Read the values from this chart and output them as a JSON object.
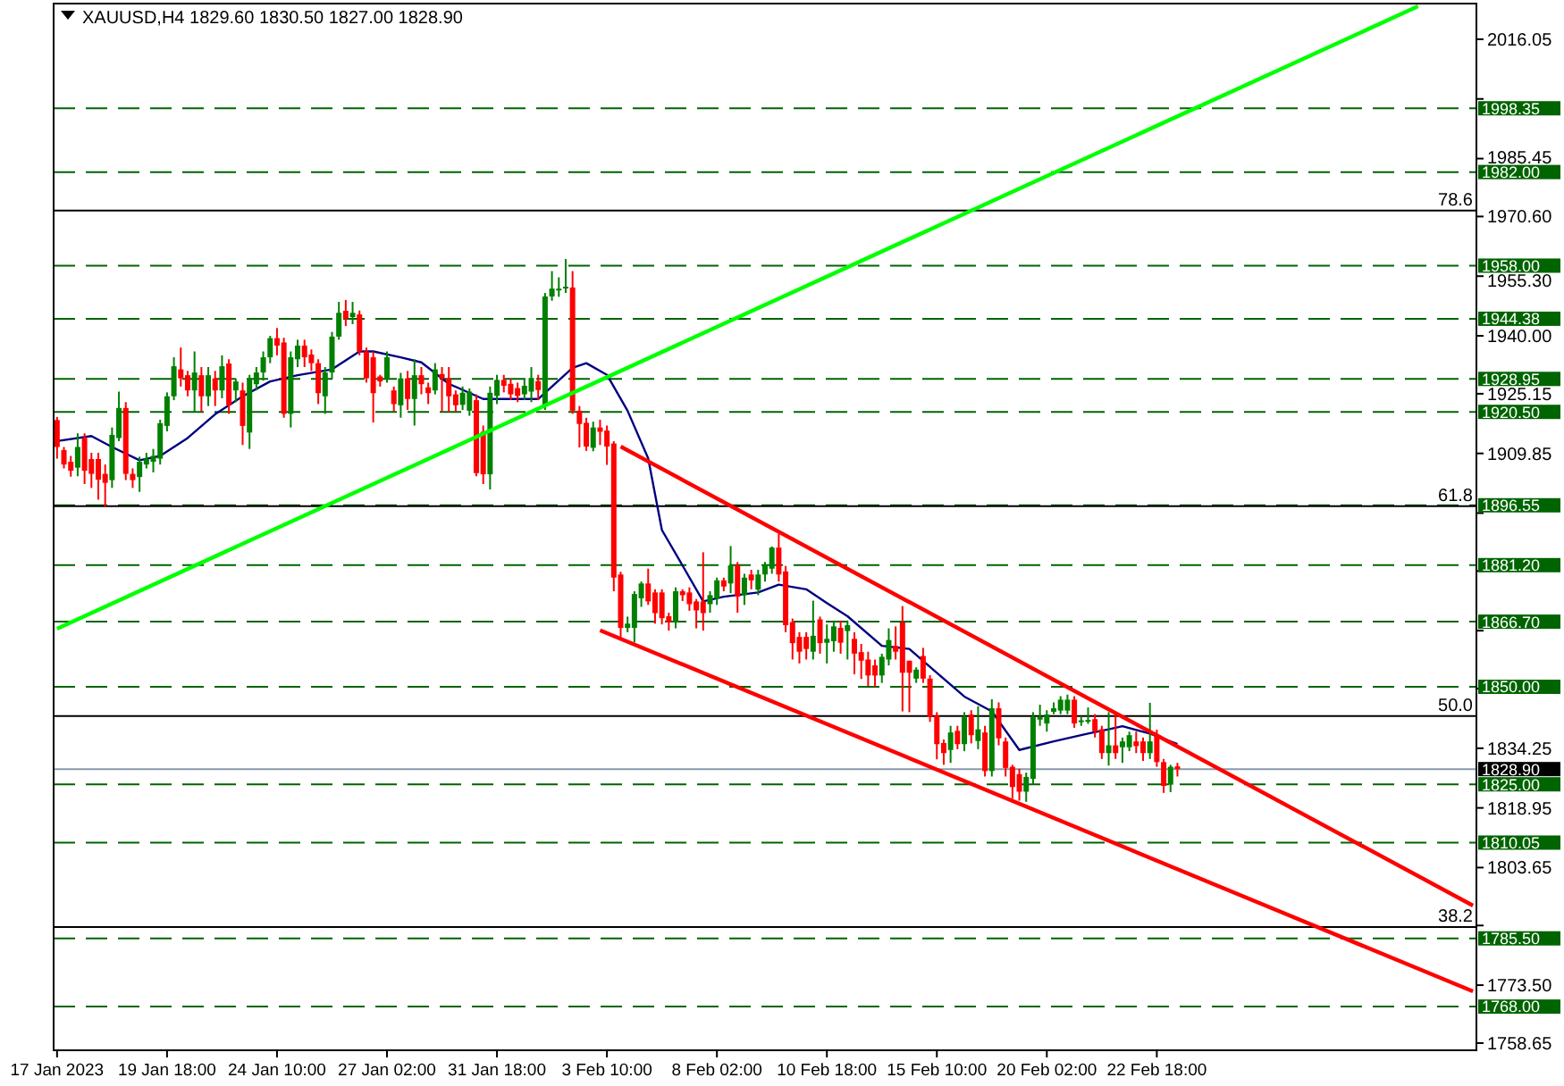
{
  "chart_data": {
    "type": "candlestick",
    "title": "XAUUSD,H4  1829.60 1830.50 1827.00 1828.90",
    "categories": [
      "17 Jan 2023",
      null,
      null,
      null,
      null,
      null,
      null,
      null,
      null,
      null,
      null,
      null,
      null,
      null,
      null,
      null,
      "19 Jan 18:00",
      null,
      null,
      null,
      null,
      null,
      null,
      null,
      null,
      null,
      null,
      null,
      null,
      null,
      null,
      null,
      "24 Jan 10:00",
      null,
      null,
      null,
      null,
      null,
      null,
      null,
      null,
      null,
      null,
      null,
      null,
      null,
      null,
      null,
      "27 Jan 02:00",
      null,
      null,
      null,
      null,
      null,
      null,
      null,
      null,
      null,
      null,
      null,
      null,
      null,
      null,
      null,
      "31 Jan 18:00",
      null,
      null,
      null,
      null,
      null,
      null,
      null,
      null,
      null,
      null,
      null,
      null,
      null,
      null,
      null,
      "3 Feb 10:00",
      null,
      null,
      null,
      null,
      null,
      null,
      null,
      null,
      null,
      null,
      null,
      null,
      null,
      null,
      null,
      "8 Feb 02:00",
      null,
      null,
      null,
      null,
      null,
      null,
      null,
      null,
      null,
      null,
      null,
      null,
      null,
      null,
      null,
      "10 Feb 18:00",
      null,
      null,
      null,
      null,
      null,
      null,
      null,
      null,
      null,
      null,
      null,
      null,
      null,
      null,
      null,
      "15 Feb 10:00",
      null,
      null,
      null,
      null,
      null,
      null,
      null,
      null,
      null,
      null,
      null,
      null,
      null,
      null,
      null,
      "20 Feb 02:00",
      null,
      null,
      null,
      null,
      null,
      null,
      null,
      null,
      null,
      null,
      null,
      null,
      null,
      null,
      null,
      "22 Feb 18:00",
      null,
      null,
      null,
      null,
      null,
      null,
      null,
      null,
      null,
      null,
      null,
      null,
      null,
      null,
      null,
      null,
      null,
      null,
      null,
      null,
      null,
      null,
      null,
      null,
      null,
      null,
      null,
      null,
      null,
      null,
      null,
      null,
      null,
      null,
      null,
      null,
      null,
      null,
      null,
      null,
      null,
      null,
      null,
      null,
      null,
      null
    ],
    "ohlc": [
      [
        1918.4,
        1919.2,
        1908.5,
        1911.5
      ],
      [
        1910.7,
        1911.5,
        1906,
        1907
      ],
      [
        1907.7,
        1909.2,
        1903.9,
        1905.4
      ],
      [
        1906.2,
        1915,
        1904,
        1911.5
      ],
      [
        1913.8,
        1915,
        1902,
        1905.4
      ],
      [
        1908.4,
        1910,
        1901,
        1904.6
      ],
      [
        1908.4,
        1910,
        1898,
        1903.1
      ],
      [
        1904.6,
        1907,
        1896.2,
        1902.3
      ],
      [
        1903,
        1916.5,
        1901,
        1914.6
      ],
      [
        1913.8,
        1925.7,
        1913,
        1921.5
      ],
      [
        1921.5,
        1923,
        1903,
        1904.6
      ],
      [
        1904.6,
        1906,
        1901,
        1903
      ],
      [
        1903.8,
        1909,
        1900,
        1907.7
      ],
      [
        1907,
        1910,
        1906,
        1908.5
      ],
      [
        1907.7,
        1911,
        1905,
        1909.2
      ],
      [
        1908.5,
        1918.5,
        1907,
        1917.6
      ],
      [
        1916.9,
        1925.5,
        1915.5,
        1924.5
      ],
      [
        1924.5,
        1934.5,
        1923.5,
        1932.2
      ],
      [
        1931.4,
        1937,
        1927,
        1929.1
      ],
      [
        1929.9,
        1931,
        1924.5,
        1926
      ],
      [
        1926,
        1936,
        1920.5,
        1930.6
      ],
      [
        1929.9,
        1932,
        1920.5,
        1924.5
      ],
      [
        1924.5,
        1932,
        1922,
        1929.9
      ],
      [
        1929.1,
        1931,
        1922,
        1926
      ],
      [
        1926,
        1935,
        1924,
        1932.2
      ],
      [
        1932.9,
        1934,
        1920,
        1922.2
      ],
      [
        1926,
        1929,
        1923,
        1928.3
      ],
      [
        1926,
        1928,
        1912,
        1916.9
      ],
      [
        1915.2,
        1930,
        1911,
        1929.1
      ],
      [
        1927.6,
        1932,
        1926,
        1930.6
      ],
      [
        1930.6,
        1936,
        1928.5,
        1934.5
      ],
      [
        1934.5,
        1940,
        1933,
        1939.4
      ],
      [
        1939.4,
        1942,
        1935,
        1937.5
      ],
      [
        1938.3,
        1939.5,
        1919,
        1920
      ],
      [
        1920,
        1936,
        1916.5,
        1934.5
      ],
      [
        1934,
        1939,
        1932,
        1937.5
      ],
      [
        1937.5,
        1939,
        1932,
        1934.5
      ],
      [
        1935.2,
        1936.5,
        1931,
        1933
      ],
      [
        1933,
        1934,
        1922.5,
        1925.3
      ],
      [
        1924.5,
        1932,
        1920,
        1930.6
      ],
      [
        1930.6,
        1941,
        1929,
        1939.8
      ],
      [
        1939.8,
        1948.7,
        1939,
        1945.9
      ],
      [
        1946.4,
        1949.2,
        1942.5,
        1944.4
      ],
      [
        1944.8,
        1948.7,
        1943,
        1945.9
      ],
      [
        1945.5,
        1946.5,
        1935,
        1936
      ],
      [
        1936,
        1937,
        1928,
        1929.1
      ],
      [
        1934.5,
        1936,
        1917.8,
        1925.3
      ],
      [
        1929.6,
        1930,
        1927,
        1928.3
      ],
      [
        1929.1,
        1936,
        1928,
        1934.5
      ],
      [
        1926,
        1927,
        1920.5,
        1922.5
      ],
      [
        1922.2,
        1930.5,
        1919,
        1929.1
      ],
      [
        1929.1,
        1931,
        1921,
        1923.8
      ],
      [
        1923.8,
        1934,
        1917,
        1929.9
      ],
      [
        1929.9,
        1932,
        1925,
        1927.6
      ],
      [
        1926.8,
        1928,
        1922.5,
        1925.3
      ],
      [
        1926,
        1933,
        1925,
        1931.4
      ],
      [
        1930.2,
        1932,
        1920.5,
        1929.1
      ],
      [
        1929.1,
        1932,
        1920.5,
        1924.5
      ],
      [
        1925,
        1926,
        1920.5,
        1922.2
      ],
      [
        1922.3,
        1927,
        1921,
        1925.4
      ],
      [
        1920.8,
        1926.5,
        1919.5,
        1925.7
      ],
      [
        1923.5,
        1925,
        1904,
        1904.8
      ],
      [
        1915.4,
        1917,
        1902,
        1904.5
      ],
      [
        1904.5,
        1927,
        1900.6,
        1925.4
      ],
      [
        1924.6,
        1930,
        1922.5,
        1928.7
      ],
      [
        1928.7,
        1930,
        1925.5,
        1927.2
      ],
      [
        1927.7,
        1929,
        1923.5,
        1925
      ],
      [
        1926.6,
        1928,
        1923,
        1924.6
      ],
      [
        1925,
        1929,
        1923.5,
        1927.2
      ],
      [
        1925.7,
        1932,
        1923,
        1929.2
      ],
      [
        1928.4,
        1930,
        1923.5,
        1926.1
      ],
      [
        1922.3,
        1951,
        1921,
        1950.1
      ],
      [
        1950.1,
        1956.6,
        1949,
        1952.1
      ],
      [
        1951.8,
        1955,
        1950,
        1952.1
      ],
      [
        1952.4,
        1959.7,
        1951,
        1952.6
      ],
      [
        1952.4,
        1956.6,
        1920,
        1920.8
      ],
      [
        1920.8,
        1922,
        1911.4,
        1917.4
      ],
      [
        1917.7,
        1919,
        1910.5,
        1911.6
      ],
      [
        1911.3,
        1918,
        1910.4,
        1916.5
      ],
      [
        1916.5,
        1918.5,
        1912,
        1915.4
      ],
      [
        1915.7,
        1917,
        1906.9,
        1911.6
      ],
      [
        1912.4,
        1913,
        1874.5,
        1878
      ],
      [
        1878.8,
        1879.5,
        1861.9,
        1865.1
      ],
      [
        1865.1,
        1868,
        1864,
        1866.2
      ],
      [
        1865.1,
        1874.5,
        1861.4,
        1873.8
      ],
      [
        1872.7,
        1877,
        1870.5,
        1876.5
      ],
      [
        1876.5,
        1880.3,
        1871,
        1871.9
      ],
      [
        1874.2,
        1875,
        1866.2,
        1868.9
      ],
      [
        1874.2,
        1875,
        1866,
        1867.6
      ],
      [
        1868.1,
        1869,
        1864.4,
        1866.6
      ],
      [
        1866.6,
        1875.5,
        1865,
        1874.5
      ],
      [
        1874.5,
        1875,
        1872,
        1873.5
      ],
      [
        1874.2,
        1875.5,
        1869.5,
        1871.2
      ],
      [
        1871.9,
        1872.5,
        1865,
        1869.6
      ],
      [
        1871.9,
        1884.5,
        1864.4,
        1868.9
      ],
      [
        1871.2,
        1874.5,
        1869,
        1873.5
      ],
      [
        1872.7,
        1878,
        1871,
        1877.3
      ],
      [
        1877.3,
        1878,
        1874.5,
        1875.7
      ],
      [
        1876.5,
        1886.1,
        1874,
        1881.1
      ],
      [
        1881.1,
        1882,
        1869,
        1873.1
      ],
      [
        1873.5,
        1879,
        1871,
        1878
      ],
      [
        1878.8,
        1880,
        1875,
        1877.3
      ],
      [
        1874.9,
        1880,
        1873.5,
        1878.8
      ],
      [
        1878.8,
        1882,
        1877,
        1881.4
      ],
      [
        1880.3,
        1886,
        1879,
        1885.7
      ],
      [
        1885.7,
        1889.2,
        1877,
        1878.8
      ],
      [
        1879.6,
        1881,
        1864,
        1865.8
      ],
      [
        1866.6,
        1867.5,
        1857,
        1861.2
      ],
      [
        1862.8,
        1864,
        1856,
        1859
      ],
      [
        1862.8,
        1864,
        1857,
        1859.7
      ],
      [
        1859,
        1872.1,
        1857,
        1863.1
      ],
      [
        1867.3,
        1868,
        1858.5,
        1861.2
      ],
      [
        1861.3,
        1866,
        1856,
        1862.3
      ],
      [
        1861.7,
        1867,
        1859,
        1865.5
      ],
      [
        1865.1,
        1867,
        1858.5,
        1861.3
      ],
      [
        1864.3,
        1867,
        1857,
        1865.8
      ],
      [
        1862.3,
        1864,
        1853.2,
        1858.5
      ],
      [
        1858.9,
        1861,
        1852,
        1856.7
      ],
      [
        1857,
        1859,
        1850.2,
        1852.9
      ],
      [
        1855.5,
        1857,
        1850,
        1852.9
      ],
      [
        1852.9,
        1858.5,
        1851,
        1857.7
      ],
      [
        1857,
        1865,
        1855.5,
        1862
      ],
      [
        1860.5,
        1865.5,
        1857,
        1859
      ],
      [
        1866.5,
        1870.7,
        1843.7,
        1853.6
      ],
      [
        1856.7,
        1856.7,
        1843.5,
        1853.6
      ],
      [
        1852.1,
        1855,
        1851,
        1854.4
      ],
      [
        1857.9,
        1860,
        1851,
        1852.1
      ],
      [
        1852.1,
        1853,
        1841,
        1842.2
      ],
      [
        1842.6,
        1843.5,
        1831.4,
        1835.3
      ],
      [
        1835.6,
        1836.5,
        1830,
        1833
      ],
      [
        1833.8,
        1840,
        1830.5,
        1838.3
      ],
      [
        1838.7,
        1840,
        1834,
        1835.3
      ],
      [
        1835.3,
        1843.5,
        1833.5,
        1842.2
      ],
      [
        1842.9,
        1844,
        1835.5,
        1837.6
      ],
      [
        1836.1,
        1845,
        1834,
        1839.1
      ],
      [
        1838.3,
        1840,
        1827,
        1828.4
      ],
      [
        1828.4,
        1846.8,
        1827,
        1844.5
      ],
      [
        1844.5,
        1846,
        1835,
        1836.8
      ],
      [
        1836,
        1837,
        1827,
        1829.2
      ],
      [
        1829.5,
        1830,
        1821.3,
        1824.3
      ],
      [
        1827.6,
        1829,
        1820.8,
        1823.1
      ],
      [
        1823.1,
        1828,
        1820.5,
        1826.9
      ],
      [
        1826.4,
        1843.5,
        1825,
        1842.2
      ],
      [
        1841.6,
        1845.4,
        1840,
        1842.2
      ],
      [
        1840.6,
        1844,
        1838.5,
        1842.9
      ],
      [
        1843.6,
        1846,
        1843,
        1844.5
      ],
      [
        1843.9,
        1847.6,
        1843,
        1846.7
      ],
      [
        1843.9,
        1848,
        1843,
        1846.7
      ],
      [
        1846.7,
        1847.6,
        1839.5,
        1840.6
      ],
      [
        1841.2,
        1842.5,
        1840,
        1841.4
      ],
      [
        1841.3,
        1844.7,
        1840.5,
        1841.5
      ],
      [
        1841.7,
        1843,
        1837,
        1838.6
      ],
      [
        1839.1,
        1840,
        1831.5,
        1833
      ],
      [
        1833,
        1843.5,
        1829.8,
        1835
      ],
      [
        1835,
        1843.5,
        1831.5,
        1833
      ],
      [
        1834.5,
        1837,
        1830.5,
        1836
      ],
      [
        1834.5,
        1838.5,
        1833.5,
        1837.6
      ],
      [
        1836,
        1838.5,
        1833,
        1834.8
      ],
      [
        1836,
        1837,
        1831,
        1833
      ],
      [
        1833,
        1845.9,
        1831.5,
        1836
      ],
      [
        1837.6,
        1839,
        1829.5,
        1830.7
      ],
      [
        1830.7,
        1831.5,
        1822.8,
        1824.6
      ],
      [
        1824.9,
        1830,
        1823,
        1829.5
      ],
      [
        1829.6,
        1830.5,
        1827,
        1828.9
      ],
      null,
      null,
      null,
      null,
      null,
      null,
      null,
      null,
      null,
      null,
      null,
      null,
      null,
      null,
      null,
      null,
      null,
      null,
      null,
      null,
      null,
      null,
      null,
      null,
      null,
      null,
      null,
      null,
      null,
      null,
      null,
      null,
      null,
      null,
      null,
      null,
      null,
      null,
      null,
      null,
      null,
      null,
      null
    ],
    "colors": [
      "#ff0000",
      "#ff0000",
      "#ff0000",
      "#008000",
      "#ff0000",
      "#ff0000",
      "#ff0000",
      "#ff0000",
      "#008000",
      "#008000",
      "#ff0000",
      "#ff0000",
      "#008000",
      "#008000",
      "#008000",
      "#008000",
      "#008000",
      "#008000",
      "#ff0000",
      "#ff0000",
      "#008000",
      "#ff0000",
      "#008000",
      "#ff0000",
      "#008000",
      "#ff0000",
      "#008000",
      "#ff0000",
      "#008000",
      "#008000",
      "#008000",
      "#008000",
      "#ff0000",
      "#ff0000",
      "#008000",
      "#008000",
      "#ff0000",
      "#ff0000",
      "#ff0000",
      "#008000",
      "#008000",
      "#008000",
      "#ff0000",
      "#008000",
      "#ff0000",
      "#ff0000",
      "#ff0000",
      "#ff0000",
      "#008000",
      "#ff0000",
      "#008000",
      "#ff0000",
      "#008000",
      "#ff0000",
      "#ff0000",
      "#008000",
      "#ff0000",
      "#ff0000",
      "#ff0000",
      "#008000",
      "#008000",
      "#ff0000",
      "#ff0000",
      "#008000",
      "#008000",
      "#ff0000",
      "#ff0000",
      "#ff0000",
      "#008000",
      "#008000",
      "#ff0000",
      "#008000",
      "#008000",
      "#008000",
      "#008000",
      "#ff0000",
      "#ff0000",
      "#ff0000",
      "#008000",
      "#ff0000",
      "#ff0000",
      "#ff0000",
      "#ff0000",
      "#008000",
      "#008000",
      "#008000",
      "#ff0000",
      "#ff0000",
      "#ff0000",
      "#ff0000",
      "#008000",
      "#ff0000",
      "#ff0000",
      "#ff0000",
      "#ff0000",
      "#008000",
      "#008000",
      "#ff0000",
      "#008000",
      "#ff0000",
      "#008000",
      "#ff0000",
      "#008000",
      "#008000",
      "#008000",
      "#ff0000",
      "#ff0000",
      "#ff0000",
      "#ff0000",
      "#ff0000",
      "#008000",
      "#ff0000",
      "#008000",
      "#008000",
      "#ff0000",
      "#008000",
      "#ff0000",
      "#ff0000",
      "#ff0000",
      "#ff0000",
      "#008000",
      "#008000",
      "#ff0000",
      "#ff0000",
      "#ff0000",
      "#008000",
      "#ff0000",
      "#ff0000",
      "#ff0000",
      "#ff0000",
      "#008000",
      "#ff0000",
      "#008000",
      "#ff0000",
      "#008000",
      "#ff0000",
      "#008000",
      "#ff0000",
      "#ff0000",
      "#ff0000",
      "#ff0000",
      "#008000",
      "#008000",
      "#008000",
      "#008000",
      "#008000",
      "#008000",
      "#008000",
      "#ff0000",
      "#008000",
      "#008000",
      "#ff0000",
      "#ff0000",
      "#008000",
      "#ff0000",
      "#008000",
      "#008000",
      "#ff0000",
      "#ff0000",
      "#008000",
      "#ff0000",
      "#ff0000",
      "#008000",
      "#ff0000",
      null,
      null,
      null,
      null,
      null,
      null,
      null,
      null,
      null,
      null,
      null,
      null,
      null,
      null,
      null,
      null,
      null,
      null,
      null,
      null,
      null,
      null,
      null,
      null,
      null,
      null,
      null,
      null,
      null,
      null,
      null,
      null,
      null,
      null,
      null,
      null,
      null,
      null,
      null,
      null,
      null,
      null,
      null
    ],
    "series": [
      {
        "type": "line",
        "color": "#000080",
        "values": [
          1913,
          null,
          null,
          null,
          null,
          1914.3,
          null,
          null,
          1911.5,
          null,
          null,
          null,
          1908.1,
          null,
          null,
          1909.2,
          null,
          null,
          null,
          1913.8,
          null,
          null,
          null,
          1919.9,
          null,
          null,
          null,
          1924.5,
          null,
          null,
          null,
          1928.3,
          null,
          null,
          null,
          1929.9,
          null,
          null,
          null,
          null,
          1931.4,
          null,
          null,
          null,
          1936,
          null,
          1936,
          null,
          null,
          null,
          1934.5,
          null,
          null,
          1933.2,
          null,
          null,
          null,
          1927.7,
          null,
          null,
          null,
          null,
          1923.8,
          null,
          null,
          null,
          null,
          null,
          null,
          null,
          1923.8,
          null,
          null,
          null,
          null,
          1931.8,
          null,
          1933,
          null,
          null,
          1930,
          null,
          null,
          1920.8,
          null,
          null,
          1908.6,
          null,
          1890.2,
          null,
          null,
          1881.1,
          null,
          null,
          1871.9,
          null,
          null,
          1873.1,
          null,
          null,
          null,
          null,
          1874.2,
          null,
          null,
          1876.2,
          null,
          null,
          null,
          1875,
          null,
          null,
          1871.5,
          null,
          null,
          1868.1,
          null,
          null,
          null,
          null,
          1860.5,
          null,
          null,
          null,
          1859.7,
          null,
          null,
          null,
          1853.6,
          null,
          null,
          null,
          1847.5,
          null,
          null,
          null,
          1843.7,
          null,
          null,
          null,
          1833.8,
          null,
          null,
          null,
          null,
          1836,
          null,
          null,
          null,
          null,
          1838,
          null,
          null,
          1839.1,
          null,
          1839.9,
          null,
          null,
          null,
          1838,
          null,
          null,
          null,
          1835.3,
          null,
          null,
          null,
          null,
          null,
          null,
          null,
          null,
          null,
          null,
          null,
          null,
          null,
          null,
          null,
          null,
          null,
          null,
          null,
          null,
          null,
          null,
          null,
          null,
          null,
          null,
          null,
          null,
          null,
          null,
          null,
          null,
          null,
          null,
          null,
          null,
          null,
          null,
          null,
          null,
          null,
          null,
          null
        ]
      },
      {
        "type": "line",
        "color": "#00ff00",
        "values": [
          1864.9,
          null,
          null,
          null,
          null,
          null,
          null,
          null,
          null,
          null,
          null,
          null,
          null,
          null,
          null,
          null,
          null,
          null,
          null,
          null,
          null,
          null,
          null,
          null,
          null,
          null,
          null,
          null,
          null,
          null,
          null,
          null,
          null,
          null,
          null,
          null,
          null,
          null,
          null,
          null,
          null,
          null,
          null,
          null,
          null,
          null,
          null,
          null,
          null,
          null,
          null,
          null,
          null,
          null,
          null,
          null,
          null,
          null,
          null,
          null,
          null,
          null,
          null,
          null,
          null,
          null,
          null,
          null,
          null,
          null,
          null,
          null,
          null,
          null,
          null,
          null,
          null,
          null,
          null,
          null,
          null,
          null,
          null,
          null,
          null,
          null,
          null,
          null,
          null,
          null,
          null,
          null,
          null,
          null,
          null,
          null,
          null,
          null,
          null,
          null,
          null,
          null,
          null,
          null,
          null,
          null,
          null,
          null,
          null,
          null,
          null,
          null,
          null,
          null,
          null,
          null,
          null,
          null,
          null,
          null,
          null,
          null,
          null,
          null,
          null,
          null,
          null,
          null,
          null,
          null,
          null,
          null,
          null,
          null,
          null,
          null,
          null,
          null,
          null,
          null,
          null,
          null,
          null,
          null,
          null,
          null,
          null,
          null,
          null,
          null,
          null,
          null,
          null,
          null,
          null,
          null,
          null,
          null,
          null,
          null,
          null,
          null,
          null,
          null,
          null,
          null,
          null,
          null,
          null,
          null,
          null,
          null,
          null,
          null,
          null,
          null,
          null,
          null,
          null,
          null,
          null,
          null,
          null,
          null,
          null,
          null,
          null,
          null,
          null,
          null,
          null,
          null,
          null,
          null,
          null,
          null,
          null,
          null,
          2024.5,
          null,
          null,
          null,
          null,
          null,
          null,
          null,
          null
        ]
      },
      {
        "type": "line",
        "color": "#ff0000",
        "values": [
          null,
          null,
          null,
          null,
          null,
          null,
          null,
          null,
          null,
          null,
          null,
          null,
          null,
          null,
          null,
          null,
          null,
          null,
          null,
          null,
          null,
          null,
          null,
          null,
          null,
          null,
          null,
          null,
          null,
          null,
          null,
          null,
          null,
          null,
          null,
          null,
          null,
          null,
          null,
          null,
          null,
          null,
          null,
          null,
          null,
          null,
          null,
          null,
          null,
          null,
          null,
          null,
          null,
          null,
          null,
          null,
          null,
          null,
          null,
          null,
          null,
          null,
          null,
          null,
          null,
          null,
          null,
          null,
          null,
          null,
          null,
          null,
          null,
          null,
          null,
          null,
          null,
          null,
          null,
          null,
          null,
          null,
          1911.6,
          null,
          null,
          null,
          null,
          null,
          null,
          null,
          null,
          null,
          null,
          null,
          null,
          null,
          null,
          null,
          null,
          null,
          null,
          null,
          null,
          null,
          null,
          null,
          null,
          null,
          null,
          null,
          null,
          null,
          null,
          null,
          null,
          null,
          null,
          null,
          null,
          null,
          null,
          null,
          null,
          null,
          null,
          null,
          null,
          null,
          null,
          null,
          null,
          null,
          null,
          null,
          null,
          null,
          null,
          null,
          null,
          null,
          null,
          null,
          null,
          null,
          null,
          null,
          null,
          null,
          null,
          null,
          null,
          null,
          null,
          null,
          null,
          null,
          null,
          null,
          null,
          null,
          null,
          null,
          null,
          null,
          null,
          null,
          null,
          null,
          null,
          null,
          null,
          null,
          null,
          null,
          null,
          null,
          null,
          null,
          null,
          null,
          null,
          null,
          null,
          null,
          null,
          null,
          null,
          null,
          null,
          null,
          null,
          null,
          null,
          null,
          null,
          null,
          null,
          null,
          null,
          null,
          null,
          null,
          null,
          null,
          null,
          null,
          1793.9
        ]
      },
      {
        "type": "line",
        "color": "#ff0000",
        "values": [
          null,
          null,
          null,
          null,
          null,
          null,
          null,
          null,
          null,
          null,
          null,
          null,
          null,
          null,
          null,
          null,
          null,
          null,
          null,
          null,
          null,
          null,
          null,
          null,
          null,
          null,
          null,
          null,
          null,
          null,
          null,
          null,
          null,
          null,
          null,
          null,
          null,
          null,
          null,
          null,
          null,
          null,
          null,
          null,
          null,
          null,
          null,
          null,
          null,
          null,
          null,
          null,
          null,
          null,
          null,
          null,
          null,
          null,
          null,
          null,
          null,
          null,
          null,
          null,
          null,
          null,
          null,
          null,
          null,
          null,
          null,
          null,
          null,
          null,
          null,
          null,
          null,
          null,
          null,
          1864.5,
          null,
          null,
          null,
          null,
          null,
          null,
          null,
          null,
          null,
          null,
          null,
          null,
          null,
          null,
          null,
          null,
          null,
          null,
          null,
          null,
          null,
          null,
          null,
          null,
          null,
          null,
          null,
          null,
          null,
          null,
          null,
          null,
          null,
          null,
          null,
          null,
          null,
          null,
          null,
          null,
          null,
          null,
          null,
          null,
          null,
          null,
          null,
          null,
          null,
          null,
          null,
          null,
          null,
          null,
          null,
          null,
          null,
          null,
          null,
          null,
          null,
          null,
          null,
          null,
          null,
          null,
          null,
          null,
          null,
          null,
          null,
          null,
          null,
          null,
          null,
          null,
          null,
          null,
          null,
          null,
          null,
          null,
          null,
          null,
          null,
          null,
          null,
          null,
          null,
          null,
          null,
          null,
          null,
          null,
          null,
          null,
          null,
          null,
          null,
          null,
          null,
          null,
          null,
          null,
          null,
          null,
          null,
          null,
          null,
          null,
          null,
          null,
          null,
          null,
          null,
          null,
          null,
          null,
          null,
          null,
          null,
          null,
          null,
          null,
          null,
          null,
          1771.9
        ]
      }
    ],
    "ref_lines": [
      {
        "axis": "y",
        "value": 1998.35,
        "label": "1998.35",
        "color": "#006400",
        "line_style": "dashed"
      },
      {
        "axis": "y",
        "value": 1982,
        "label": "1982.00",
        "color": "#006400",
        "line_style": "dashed"
      },
      {
        "axis": "y",
        "value": 1972.1,
        "color": "#000000",
        "line_style": "solid"
      },
      {
        "axis": "y",
        "value": 1958,
        "label": "1958.00",
        "color": "#006400",
        "line_style": "dashed"
      },
      {
        "axis": "y",
        "value": 1944.38,
        "label": "1944.38",
        "color": "#006400",
        "line_style": "dashed"
      },
      {
        "axis": "y",
        "value": 1928.95,
        "label": "1928.95",
        "color": "#006400",
        "line_style": "dashed"
      },
      {
        "axis": "y",
        "value": 1920.5,
        "label": "1920.50",
        "color": "#006400",
        "line_style": "dashed"
      },
      {
        "axis": "y",
        "value": 1896.55,
        "label": "1896.55",
        "color": "#006400",
        "line_style": "dashed"
      },
      {
        "axis": "y",
        "value": 1896.3,
        "color": "#000000",
        "line_style": "solid"
      },
      {
        "axis": "y",
        "value": 1881.2,
        "label": "1881.20",
        "color": "#006400",
        "line_style": "dashed"
      },
      {
        "axis": "y",
        "value": 1866.7,
        "label": "1866.70",
        "color": "#006400",
        "line_style": "dashed"
      },
      {
        "axis": "y",
        "value": 1850,
        "label": "1850.00",
        "color": "#006400",
        "line_style": "dashed"
      },
      {
        "axis": "y",
        "value": 1842.5,
        "color": "#000000",
        "line_style": "solid"
      },
      {
        "axis": "y",
        "value": 1828.9,
        "label": "1828.90",
        "color": "#8899aa",
        "line_style": "solid"
      },
      {
        "axis": "y",
        "value": 1825,
        "label": "1825.00",
        "color": "#006400",
        "line_style": "dashed"
      },
      {
        "axis": "y",
        "value": 1810.05,
        "label": "1810.05",
        "color": "#006400",
        "line_style": "dashed"
      },
      {
        "axis": "y",
        "value": 1788.4,
        "color": "#000000",
        "line_style": "solid"
      },
      {
        "axis": "y",
        "value": 1785.5,
        "label": "1785.50",
        "color": "#006400",
        "line_style": "dashed"
      },
      {
        "axis": "y",
        "value": 1768,
        "label": "1768.00",
        "color": "#006400",
        "line_style": "dashed"
      }
    ],
    "annotations": [
      {
        "text": "78.6",
        "y": 1972.1
      },
      {
        "text": "61.8",
        "y": 1896.3
      },
      {
        "text": "50.0",
        "y": 1842.5
      },
      {
        "text": "38.2",
        "y": 1788.4
      }
    ],
    "ylim": [
      1756.8,
      2025.2
    ],
    "yticks": [
      {
        "value": 2016.05,
        "label": "2016.05"
      },
      {
        "value": 2000.75,
        "label": null
      },
      {
        "value": 1985.45,
        "label": "1985.45"
      },
      {
        "value": 1970.6,
        "label": "1970.60"
      },
      {
        "value": 1955.3,
        "label": "1955.30"
      },
      {
        "value": 1940,
        "label": "1940.00"
      },
      {
        "value": 1925.15,
        "label": "1925.15"
      },
      {
        "value": 1909.85,
        "label": "1909.85"
      },
      {
        "value": 1894.55,
        "label": null
      },
      {
        "value": 1879.7,
        "label": null
      },
      {
        "value": 1864.4,
        "label": null
      },
      {
        "value": 1849.55,
        "label": null
      },
      {
        "value": 1834.25,
        "label": "1834.25"
      },
      {
        "value": 1818.95,
        "label": "1818.95"
      },
      {
        "value": 1803.65,
        "label": "1803.65"
      },
      {
        "value": 1788.8,
        "label": null
      },
      {
        "value": 1773.5,
        "label": "1773.50"
      },
      {
        "value": 1758.65,
        "label": "1758.65"
      }
    ]
  }
}
